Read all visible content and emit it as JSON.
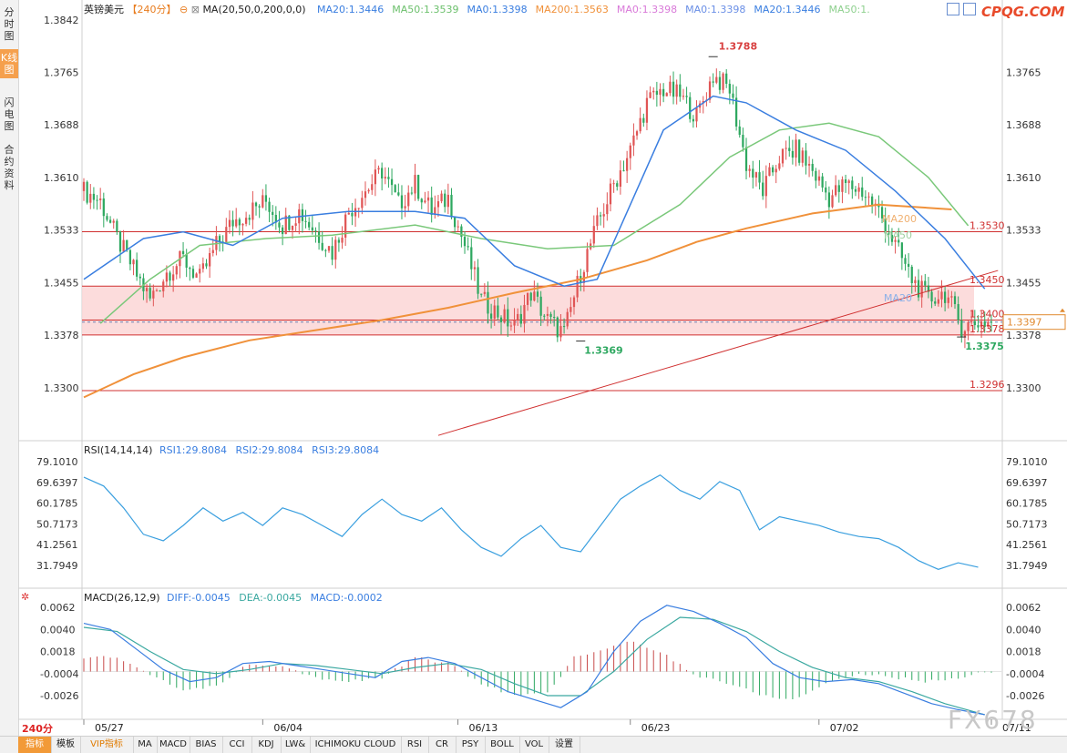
{
  "left_tabs": [
    "分时图",
    "K线图",
    "闪电图",
    "合约资料"
  ],
  "watermark": {
    "top": "CPQG.COM",
    "bottom": "FX678"
  },
  "period_label": "240分",
  "bottom_tabs": [
    "指标",
    "模板",
    "VIP指标",
    "MA",
    "MACD",
    "BIAS",
    "CCI",
    "KDJ",
    "LW&",
    "ICHIMOKU CLOUD",
    "RSI",
    "CR",
    "PSY",
    "BOLL",
    "VOL",
    "设置"
  ],
  "main_legend": {
    "symbol": "英镑美元",
    "period": "【240分】",
    "indicator": "MA(20,50,0,200,0,0)",
    "items": [
      {
        "text": "MA20:1.3446",
        "color": "#3a7ee0"
      },
      {
        "text": "MA50:1.3539",
        "color": "#6cc06c"
      },
      {
        "text": "MA0:1.3398",
        "color": "#3a7ee0"
      },
      {
        "text": "MA200:1.3563",
        "color": "#f0913a"
      },
      {
        "text": "MA0:1.3398",
        "color": "#d97ad9"
      },
      {
        "text": "MA0:1.3398",
        "color": "#6a8fe6"
      },
      {
        "text": "MA20:1.3446",
        "color": "#3a7ee0"
      },
      {
        "text": "MA50:1.",
        "color": "#8ed08e"
      }
    ]
  },
  "rsi_legend": {
    "title": "RSI(14,14,14)",
    "items": [
      "RSI1:29.8084",
      "RSI2:29.8084",
      "RSI3:29.8084"
    ],
    "color": "#3a7ee0"
  },
  "macd_legend": {
    "title": "MACD(26,12,9)",
    "items": [
      {
        "text": "DIFF:-0.0045",
        "color": "#3a7ee0"
      },
      {
        "text": "DEA:-0.0045",
        "color": "#3aa8a0"
      },
      {
        "text": "MACD:-0.0002",
        "color": "#3a7ee0"
      }
    ]
  },
  "colors": {
    "up": "#e05555",
    "down": "#2ea860",
    "ma20": "#3a7ee0",
    "ma50": "#7ac87a",
    "ma200": "#f0913a",
    "level": "#d03030",
    "zone": "#fbd3d3",
    "rsi": "#3a9fdf",
    "diff": "#3a7ee0",
    "dea": "#3aa8a0",
    "trend": "#d03030"
  },
  "chart_data": [
    {
      "type": "candlestick",
      "title": "英镑美元",
      "period": "240分",
      "y_ticks": [
        "1.3842",
        "1.3765",
        "1.3688",
        "1.3610",
        "1.3533",
        "1.3455",
        "1.3378",
        "1.3300"
      ],
      "y_range": [
        1.324,
        1.385
      ],
      "x_labels": [
        "05/27",
        "06/04",
        "06/13",
        "06/23",
        "07/02",
        "07/11"
      ],
      "close_path": [
        [
          0,
          1.359
        ],
        [
          5,
          1.3575
        ],
        [
          10,
          1.352
        ],
        [
          15,
          1.3475
        ],
        [
          20,
          1.343
        ],
        [
          25,
          1.347
        ],
        [
          30,
          1.349
        ],
        [
          35,
          1.346
        ],
        [
          40,
          1.351
        ],
        [
          45,
          1.3545
        ],
        [
          50,
          1.356
        ],
        [
          55,
          1.3575
        ],
        [
          60,
          1.354
        ],
        [
          65,
          1.356
        ],
        [
          70,
          1.353
        ],
        [
          75,
          1.35
        ],
        [
          80,
          1.356
        ],
        [
          85,
          1.359
        ],
        [
          90,
          1.362
        ],
        [
          95,
          1.357
        ],
        [
          100,
          1.36
        ],
        [
          105,
          1.356
        ],
        [
          110,
          1.358
        ],
        [
          115,
          1.351
        ],
        [
          120,
          1.343
        ],
        [
          125,
          1.341
        ],
        [
          130,
          1.339
        ],
        [
          135,
          1.344
        ],
        [
          140,
          1.34
        ],
        [
          145,
          1.338
        ],
        [
          150,
          1.347
        ],
        [
          155,
          1.354
        ],
        [
          160,
          1.36
        ],
        [
          165,
          1.365
        ],
        [
          170,
          1.372
        ],
        [
          175,
          1.374
        ],
        [
          180,
          1.373
        ],
        [
          185,
          1.37
        ],
        [
          190,
          1.376
        ],
        [
          195,
          1.374
        ],
        [
          200,
          1.363
        ],
        [
          205,
          1.359
        ],
        [
          210,
          1.364
        ],
        [
          215,
          1.365
        ],
        [
          220,
          1.362
        ],
        [
          225,
          1.358
        ],
        [
          230,
          1.36
        ],
        [
          235,
          1.359
        ],
        [
          240,
          1.356
        ],
        [
          245,
          1.351
        ],
        [
          250,
          1.346
        ],
        [
          255,
          1.343
        ],
        [
          260,
          1.344
        ],
        [
          265,
          1.339
        ],
        [
          270,
          1.3397
        ]
      ],
      "ma20": [
        [
          0,
          1.346
        ],
        [
          18,
          1.352
        ],
        [
          30,
          1.353
        ],
        [
          45,
          1.351
        ],
        [
          60,
          1.355
        ],
        [
          80,
          1.356
        ],
        [
          100,
          1.356
        ],
        [
          115,
          1.355
        ],
        [
          130,
          1.348
        ],
        [
          145,
          1.345
        ],
        [
          155,
          1.346
        ],
        [
          165,
          1.357
        ],
        [
          175,
          1.368
        ],
        [
          190,
          1.373
        ],
        [
          200,
          1.372
        ],
        [
          215,
          1.368
        ],
        [
          230,
          1.365
        ],
        [
          245,
          1.359
        ],
        [
          260,
          1.352
        ],
        [
          272,
          1.3446
        ]
      ],
      "ma50": [
        [
          5,
          1.3395
        ],
        [
          20,
          1.346
        ],
        [
          35,
          1.351
        ],
        [
          55,
          1.352
        ],
        [
          75,
          1.3525
        ],
        [
          100,
          1.354
        ],
        [
          120,
          1.352
        ],
        [
          140,
          1.3505
        ],
        [
          160,
          1.351
        ],
        [
          180,
          1.357
        ],
        [
          195,
          1.364
        ],
        [
          210,
          1.368
        ],
        [
          225,
          1.369
        ],
        [
          240,
          1.367
        ],
        [
          255,
          1.361
        ],
        [
          267,
          1.3539
        ]
      ],
      "ma200": [
        [
          0,
          1.3286
        ],
        [
          15,
          1.332
        ],
        [
          30,
          1.3345
        ],
        [
          50,
          1.337
        ],
        [
          70,
          1.3385
        ],
        [
          90,
          1.34
        ],
        [
          110,
          1.3418
        ],
        [
          130,
          1.344
        ],
        [
          150,
          1.346
        ],
        [
          170,
          1.3488
        ],
        [
          185,
          1.3515
        ],
        [
          200,
          1.3535
        ],
        [
          220,
          1.3557
        ],
        [
          240,
          1.357
        ],
        [
          262,
          1.3563
        ]
      ],
      "levels": [
        "1.3530",
        "1.3450",
        "1.3400",
        "1.3378",
        "1.3296"
      ],
      "zone": [
        1.3378,
        1.345
      ],
      "current_price": "1.3397",
      "trendline": [
        [
          107,
          1.323
        ],
        [
          276,
          1.3473
        ]
      ],
      "annotations": [
        {
          "text": "1.3788",
          "x": 190,
          "y": 1.3788
        },
        {
          "text": "1.3369",
          "x": 150,
          "y": 1.3369
        },
        {
          "text": "1.3375",
          "x": 265,
          "y": 1.3375
        }
      ],
      "ma_tags": [
        "MA200",
        "MA50",
        "MA20"
      ]
    },
    {
      "type": "line",
      "title": "RSI(14,14,14)",
      "y_ticks": [
        "79.1010",
        "69.6397",
        "60.1785",
        "50.7173",
        "41.2561",
        "31.7949"
      ],
      "y_range": [
        27.0,
        82.0
      ],
      "series": [
        {
          "name": "RSI1",
          "points": [
            [
              0,
              72
            ],
            [
              6,
              68
            ],
            [
              12,
              58
            ],
            [
              18,
              46
            ],
            [
              24,
              43
            ],
            [
              30,
              50
            ],
            [
              36,
              58
            ],
            [
              42,
              52
            ],
            [
              48,
              56
            ],
            [
              54,
              50
            ],
            [
              60,
              58
            ],
            [
              66,
              55
            ],
            [
              72,
              50
            ],
            [
              78,
              45
            ],
            [
              84,
              55
            ],
            [
              90,
              62
            ],
            [
              96,
              55
            ],
            [
              102,
              52
            ],
            [
              108,
              58
            ],
            [
              114,
              48
            ],
            [
              120,
              40
            ],
            [
              126,
              36
            ],
            [
              132,
              44
            ],
            [
              138,
              50
            ],
            [
              144,
              40
            ],
            [
              150,
              38
            ],
            [
              156,
              50
            ],
            [
              162,
              62
            ],
            [
              168,
              68
            ],
            [
              174,
              73
            ],
            [
              180,
              66
            ],
            [
              186,
              62
            ],
            [
              192,
              70
            ],
            [
              198,
              66
            ],
            [
              204,
              48
            ],
            [
              210,
              54
            ],
            [
              216,
              52
            ],
            [
              222,
              50
            ],
            [
              228,
              47
            ],
            [
              234,
              45
            ],
            [
              240,
              44
            ],
            [
              246,
              40
            ],
            [
              252,
              34
            ],
            [
              258,
              30
            ],
            [
              264,
              33
            ],
            [
              270,
              31
            ]
          ]
        }
      ]
    },
    {
      "type": "line",
      "title": "MACD(26,12,9)",
      "y_ticks": [
        "0.0062",
        "0.0040",
        "0.0018",
        "-0.0004",
        "-0.0026"
      ],
      "y_range": [
        -0.0048,
        0.0072
      ],
      "series": [
        {
          "name": "DIFF",
          "points": [
            [
              0,
              0.0046
            ],
            [
              8,
              0.004
            ],
            [
              16,
              0.002
            ],
            [
              24,
              0.0
            ],
            [
              32,
              -0.0012
            ],
            [
              40,
              -0.0008
            ],
            [
              48,
              0.0006
            ],
            [
              56,
              0.0008
            ],
            [
              64,
              0.0004
            ],
            [
              72,
              0.0
            ],
            [
              80,
              -0.0004
            ],
            [
              88,
              -0.0008
            ],
            [
              96,
              0.0008
            ],
            [
              104,
              0.0012
            ],
            [
              112,
              0.0006
            ],
            [
              120,
              -0.0008
            ],
            [
              128,
              -0.0022
            ],
            [
              136,
              -0.003
            ],
            [
              144,
              -0.0038
            ],
            [
              152,
              -0.0022
            ],
            [
              160,
              0.0018
            ],
            [
              168,
              0.0048
            ],
            [
              176,
              0.0064
            ],
            [
              184,
              0.0058
            ],
            [
              192,
              0.0046
            ],
            [
              200,
              0.0032
            ],
            [
              208,
              0.0006
            ],
            [
              216,
              -0.0008
            ],
            [
              224,
              -0.0012
            ],
            [
              232,
              -0.001
            ],
            [
              240,
              -0.0014
            ],
            [
              248,
              -0.0024
            ],
            [
              256,
              -0.0034
            ],
            [
              264,
              -0.004
            ],
            [
              272,
              -0.0045
            ]
          ]
        },
        {
          "name": "DEA",
          "points": [
            [
              0,
              0.0042
            ],
            [
              10,
              0.0038
            ],
            [
              20,
              0.0018
            ],
            [
              30,
              0.0
            ],
            [
              40,
              -0.0004
            ],
            [
              50,
              0.0
            ],
            [
              60,
              0.0006
            ],
            [
              70,
              0.0004
            ],
            [
              80,
              0.0
            ],
            [
              90,
              -0.0004
            ],
            [
              100,
              0.0002
            ],
            [
              110,
              0.0006
            ],
            [
              120,
              0.0
            ],
            [
              130,
              -0.0014
            ],
            [
              140,
              -0.0026
            ],
            [
              150,
              -0.0026
            ],
            [
              160,
              -0.0002
            ],
            [
              170,
              0.003
            ],
            [
              180,
              0.0052
            ],
            [
              190,
              0.005
            ],
            [
              200,
              0.0038
            ],
            [
              210,
              0.0018
            ],
            [
              220,
              0.0002
            ],
            [
              230,
              -0.0008
            ],
            [
              240,
              -0.0012
            ],
            [
              250,
              -0.0022
            ],
            [
              260,
              -0.0034
            ],
            [
              272,
              -0.0045
            ]
          ]
        },
        {
          "name": "MACD",
          "points": [
            [
              0,
              0.0012
            ],
            [
              10,
              0.0012
            ],
            [
              20,
              -0.0004
            ],
            [
              30,
              -0.0022
            ],
            [
              40,
              -0.0016
            ],
            [
              50,
              0.0006
            ],
            [
              60,
              0.0004
            ],
            [
              70,
              -0.0008
            ],
            [
              80,
              -0.0012
            ],
            [
              90,
              -0.0008
            ],
            [
              100,
              0.0012
            ],
            [
              110,
              0.0006
            ],
            [
              120,
              -0.0014
            ],
            [
              130,
              -0.0026
            ],
            [
              140,
              -0.0024
            ],
            [
              148,
              0.0012
            ],
            [
              155,
              0.0018
            ],
            [
              165,
              0.0028
            ],
            [
              175,
              0.0016
            ],
            [
              185,
              -0.0006
            ],
            [
              195,
              -0.0014
            ],
            [
              205,
              -0.0026
            ],
            [
              215,
              -0.003
            ],
            [
              225,
              -0.0012
            ],
            [
              235,
              -0.0004
            ],
            [
              245,
              -0.0008
            ],
            [
              255,
              -0.0012
            ],
            [
              265,
              -0.0008
            ],
            [
              272,
              -0.0002
            ]
          ]
        }
      ]
    }
  ]
}
